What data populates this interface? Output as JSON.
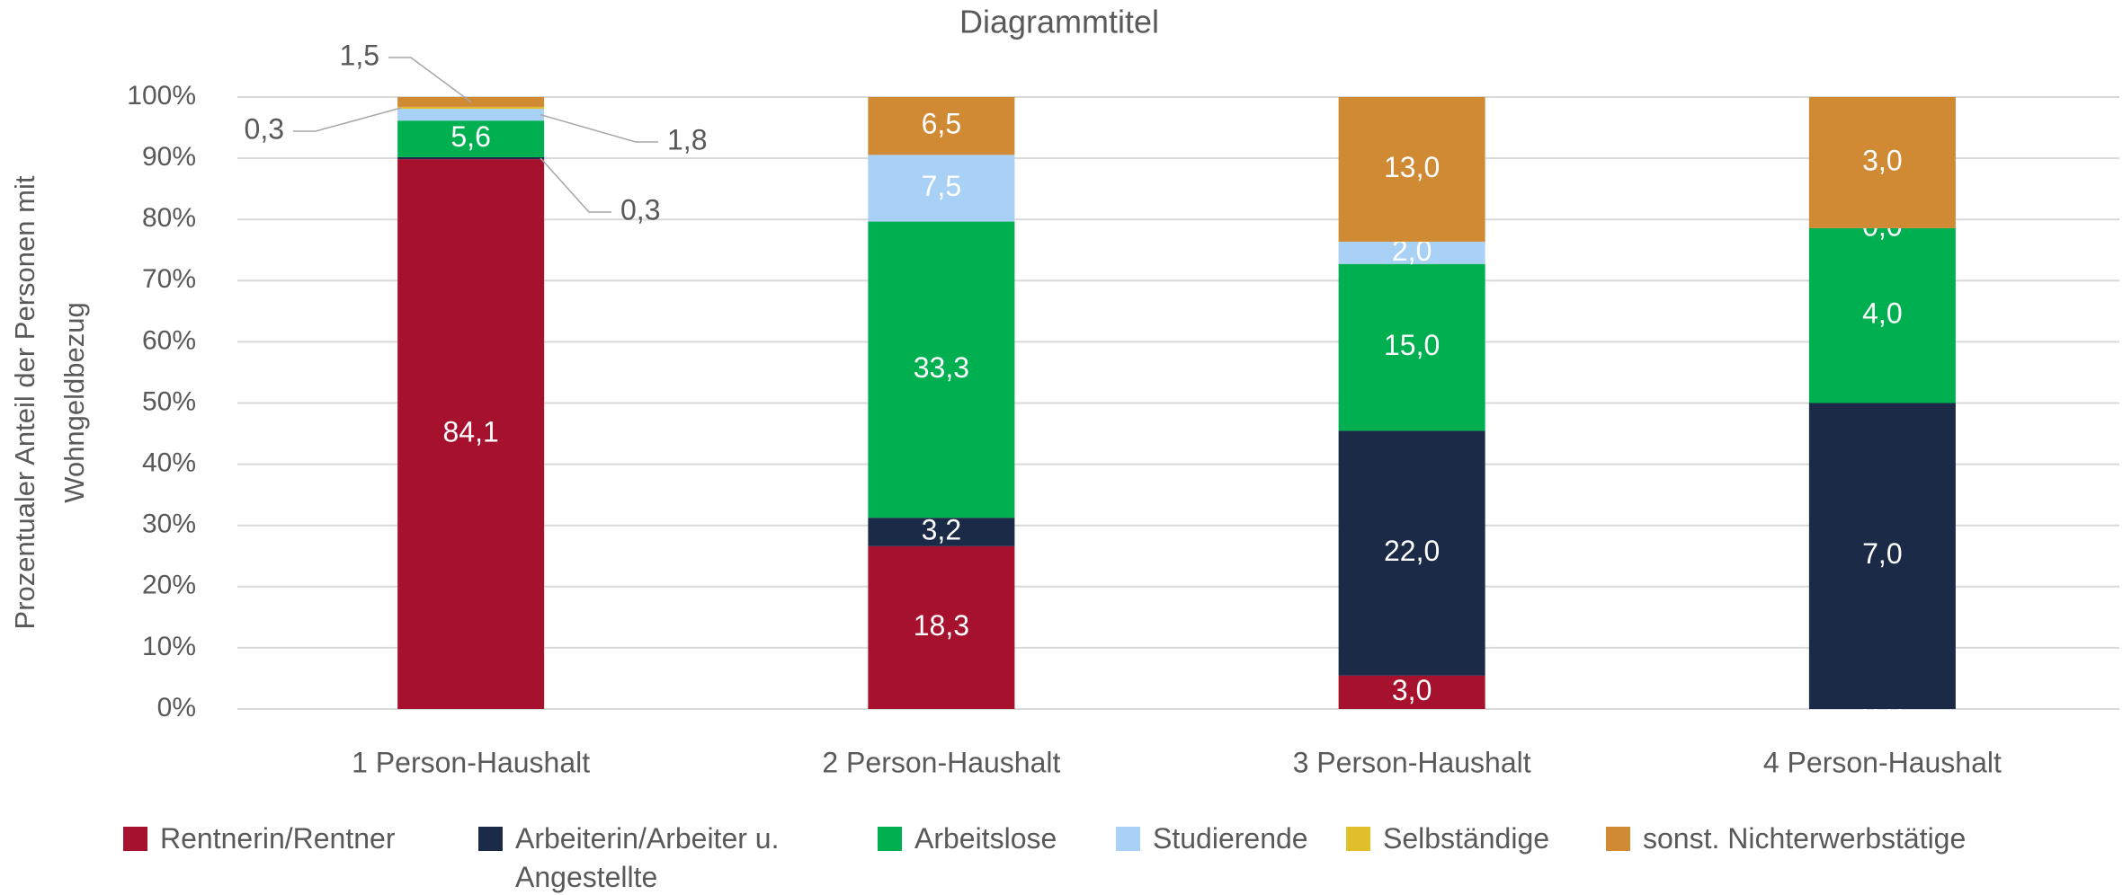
{
  "chart_data": {
    "type": "bar",
    "stacking": "percent",
    "title": "Diagrammtitel",
    "y_label": [
      "Prozentualer Anteil der Personen mit",
      "Wohngeldbezug"
    ],
    "categories": [
      "1 Person-Haushalt",
      "2 Person-Haushalt",
      "3 Person-Haushalt",
      "4 Person-Haushalt"
    ],
    "series": [
      {
        "name": "Rentnerin/Rentner",
        "color": "#a6122d",
        "values": [
          84.1,
          18.3,
          3.0,
          0.0
        ],
        "value_labels": [
          "84,1",
          "18,3",
          "3,0",
          "0,0"
        ]
      },
      {
        "name": "Arbeiterin/Arbeiter u. Angestellte",
        "color": "#1b2a47",
        "values": [
          0.3,
          3.2,
          22.0,
          7.0
        ],
        "value_labels": [
          "0,3",
          "3,2",
          "22,0",
          "7,0"
        ]
      },
      {
        "name": "Arbeitslose",
        "color": "#00b050",
        "values": [
          5.6,
          33.3,
          15.0,
          4.0
        ],
        "value_labels": [
          "5,6",
          "33,3",
          "15,0",
          "4,0"
        ]
      },
      {
        "name": "Studierende",
        "color": "#a9d0f5",
        "values": [
          1.8,
          7.5,
          2.0,
          0.0
        ],
        "value_labels": [
          "1,8",
          "7,5",
          "2,0",
          "0,0"
        ]
      },
      {
        "name": "Selbständige",
        "color": "#e0c02a",
        "values": [
          0.3,
          null,
          null,
          null
        ],
        "value_labels": [
          "0,3",
          null,
          null,
          null
        ]
      },
      {
        "name": "sonst. Nichterwerbstätige",
        "color": "#d08a34",
        "values": [
          1.5,
          6.5,
          13.0,
          3.0
        ],
        "value_labels": [
          "1,5",
          "6,5",
          "13,0",
          "3,0"
        ]
      }
    ],
    "ylim": [
      0,
      100
    ],
    "yticks": [
      {
        "value": 0,
        "label": "0%"
      },
      {
        "value": 10,
        "label": "10%"
      },
      {
        "value": 20,
        "label": "20%"
      },
      {
        "value": 30,
        "label": "30%"
      },
      {
        "value": 40,
        "label": "40%"
      },
      {
        "value": 50,
        "label": "50%"
      },
      {
        "value": 60,
        "label": "60%"
      },
      {
        "value": 70,
        "label": "70%"
      },
      {
        "value": 80,
        "label": "80%"
      },
      {
        "value": 90,
        "label": "90%"
      },
      {
        "value": 100,
        "label": "100%"
      }
    ],
    "grid": true,
    "legend": "bottom"
  }
}
